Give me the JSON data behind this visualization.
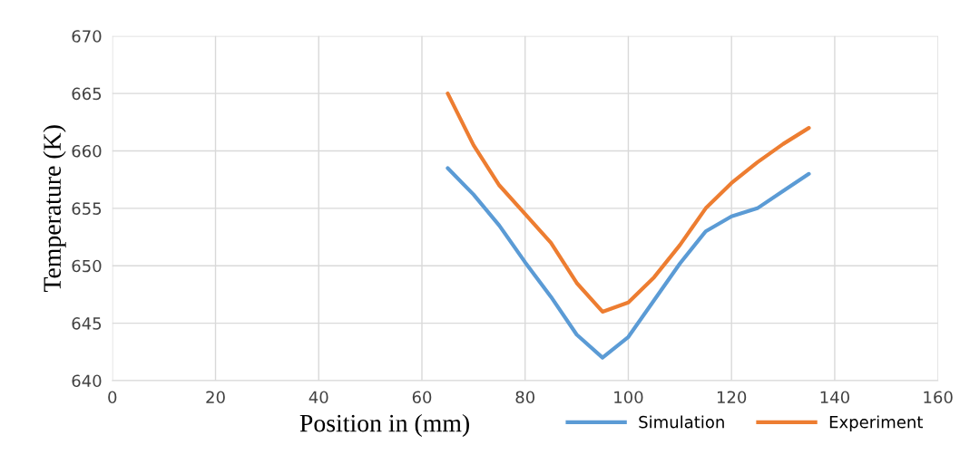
{
  "chart_data": {
    "type": "line",
    "xlabel": "Position in (mm)",
    "ylabel": "Temperature (K)",
    "x": [
      65,
      70,
      75,
      80,
      85,
      90,
      95,
      100,
      105,
      110,
      115,
      120,
      125,
      130,
      135
    ],
    "series": [
      {
        "name": "Simulation",
        "color": "#5b9bd5",
        "values": [
          658.5,
          656.2,
          653.5,
          650.3,
          647.3,
          644,
          642,
          643.8,
          647,
          650.2,
          653,
          654.3,
          655,
          656.5,
          658
        ]
      },
      {
        "name": "Experiment",
        "color": "#ed7d31",
        "values": [
          665,
          660.5,
          657,
          654.5,
          652,
          648.5,
          646,
          646.8,
          649,
          651.8,
          655,
          657.2,
          659,
          660.6,
          662
        ]
      }
    ],
    "xlim": [
      0,
      160
    ],
    "xticks": [
      0,
      20,
      40,
      60,
      80,
      100,
      120,
      140,
      160
    ],
    "ylim": [
      640,
      670
    ],
    "yticks": [
      640,
      645,
      650,
      655,
      660,
      665,
      670
    ],
    "grid": true,
    "legend": "bottom right",
    "marker": "none",
    "line_style": "solid"
  }
}
